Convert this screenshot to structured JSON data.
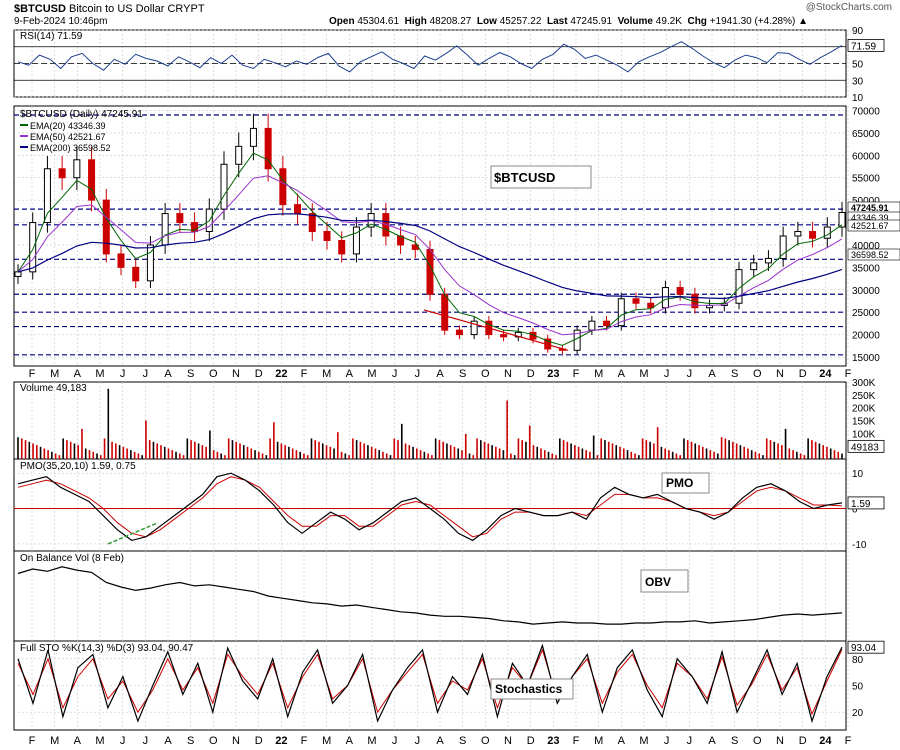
{
  "header": {
    "symbol": "$BTCUSD",
    "name": "Bitcoin to US Dollar",
    "exchange": "CRYPT",
    "datetime": "9-Feb-2024 10:46pm",
    "open_label": "Open",
    "open": "45304.61",
    "high_label": "High",
    "high": "48208.27",
    "low_label": "Low",
    "low": "45257.22",
    "last_label": "Last",
    "last": "47245.91",
    "volume_label": "Volume",
    "volume": "49.2K",
    "chg_label": "Chg",
    "chg": "+1941.30 (+4.28%)",
    "watermark": "@StockCharts.com"
  },
  "colors": {
    "price_up": "#000000",
    "price_down": "#cc0000",
    "ema20": "#006600",
    "ema50": "#9933cc",
    "ema200": "#000080",
    "rsi": "#1f3f8f",
    "rsi_fill": "#6f86c9",
    "volume": "#cc0000",
    "pmo": "#000000",
    "pmo_signal": "#cc0000",
    "sto_k": "#000000",
    "sto_d": "#cc0000",
    "grid": "#c8c8c8",
    "hline": "#000080",
    "trendline_red": "#cc0000",
    "trendline_green": "#339933"
  },
  "chart_data": [
    {
      "type": "line",
      "panel": "rsi",
      "title": "RSI(14) 71.59",
      "yticks": [
        10,
        30,
        50,
        70,
        90
      ],
      "ylim": [
        10,
        90
      ],
      "last_value": "71.59",
      "overbought": 70,
      "oversold": 30,
      "series": [
        {
          "name": "RSI(14)",
          "values": [
            52,
            48,
            60,
            55,
            44,
            58,
            62,
            50,
            42,
            55,
            49,
            61,
            56,
            53,
            47,
            58,
            52,
            45,
            57,
            50,
            60,
            48,
            44,
            55,
            51,
            46,
            53,
            49,
            57,
            62,
            47,
            40,
            52,
            58,
            64,
            55,
            50,
            44,
            59,
            54,
            62,
            71,
            60,
            48,
            56,
            63,
            58,
            50,
            44,
            55,
            61,
            73,
            67,
            56,
            60,
            54,
            48,
            40,
            52,
            58,
            63,
            70,
            76,
            68,
            59,
            51,
            45,
            54,
            60,
            57,
            51,
            63,
            62,
            55,
            49,
            57,
            64,
            71.59
          ]
        }
      ]
    },
    {
      "type": "candlestick",
      "panel": "price",
      "title": "$BTCUSD (Daily) 47245.91",
      "annotation": "$BTCUSD",
      "yticks": [
        15000,
        20000,
        25000,
        30000,
        35000,
        40000,
        45000,
        50000,
        55000,
        60000,
        65000,
        70000
      ],
      "ylim": [
        13000,
        71000
      ],
      "x_tick_labels": [
        "F",
        "M",
        "A",
        "M",
        "J",
        "J",
        "A",
        "S",
        "O",
        "N",
        "D",
        "22",
        "F",
        "M",
        "A",
        "M",
        "J",
        "J",
        "A",
        "S",
        "O",
        "N",
        "D",
        "23",
        "F",
        "M",
        "A",
        "M",
        "J",
        "J",
        "A",
        "S",
        "O",
        "N",
        "D",
        "24",
        "F"
      ],
      "horizontal_lines": [
        15500,
        21800,
        25000,
        29000,
        36800,
        44500,
        48000,
        69000
      ],
      "close": [
        34000,
        45000,
        57000,
        55000,
        59000,
        50000,
        38000,
        35000,
        32000,
        40000,
        47000,
        45000,
        43000,
        48000,
        58000,
        62000,
        66000,
        57000,
        49000,
        47000,
        43000,
        41000,
        38000,
        44000,
        47000,
        42000,
        40000,
        39000,
        29000,
        21000,
        20000,
        23000,
        20000,
        19500,
        20500,
        19000,
        16800,
        16500,
        21000,
        23000,
        22000,
        28000,
        27000,
        26000,
        30500,
        29000,
        26000,
        26500,
        27000,
        34500,
        36000,
        37000,
        42000,
        43000,
        41500,
        44000,
        47245.91
      ],
      "series": [
        {
          "name": "EMA(20) 43346.39",
          "value": 43346.39
        },
        {
          "name": "EMA(50) 42521.67",
          "value": 42521.67
        },
        {
          "name": "EMA(200) 36598.52",
          "value": 36598.52
        }
      ],
      "right_labels": [
        "47245.91",
        "43346.39",
        "42521.67",
        "36598.52"
      ]
    },
    {
      "type": "bar",
      "panel": "volume",
      "title": "Volume 49,183",
      "yticks_labels": [
        "50K",
        "100K",
        "150K",
        "200K",
        "250K",
        "300K"
      ],
      "yticks": [
        50000,
        100000,
        150000,
        200000,
        250000,
        300000
      ],
      "ylim": [
        0,
        300000
      ],
      "last_value": "49183"
    },
    {
      "type": "line",
      "panel": "pmo",
      "title": "PMO(35,20,10) 1.59, 0.75",
      "annotation": "PMO",
      "yticks": [
        -10,
        0,
        10
      ],
      "ytick_labels": [
        "-10",
        "0",
        "10"
      ],
      "ylim": [
        -12,
        14
      ],
      "last_value": "1.59",
      "series": [
        {
          "name": "PMO",
          "values": [
            7,
            8,
            9,
            6,
            4,
            2,
            -2,
            -6,
            -9,
            -8,
            -5,
            -2,
            1,
            4,
            9,
            10,
            8,
            5,
            1,
            -4,
            -7,
            -4,
            -1,
            -3,
            -6,
            -4,
            -1,
            2,
            3,
            0,
            -3,
            -7,
            -9,
            -6,
            -2,
            0,
            -1,
            -2,
            -2,
            -1,
            -3,
            3,
            6,
            4,
            3,
            4,
            2,
            0,
            -1,
            -3,
            -1,
            3,
            6,
            7,
            5,
            2,
            0,
            1,
            1.59
          ]
        },
        {
          "name": "Signal",
          "values": [
            6,
            7,
            8,
            7,
            5,
            3,
            0,
            -4,
            -7,
            -8,
            -6,
            -3,
            0,
            3,
            7,
            9,
            8,
            6,
            2,
            -2,
            -5,
            -5,
            -2,
            -2,
            -5,
            -5,
            -2,
            1,
            2,
            1,
            -2,
            -5,
            -8,
            -7,
            -3,
            -1,
            -1,
            -2,
            -2,
            -1,
            -2,
            1,
            4,
            4,
            3,
            3,
            2,
            0,
            -1,
            -2,
            -1,
            2,
            5,
            6,
            5,
            3,
            1,
            1,
            0.75
          ]
        }
      ]
    },
    {
      "type": "line",
      "panel": "obv",
      "title": "On Balance Vol (8 Feb)",
      "annotation": "OBV",
      "series": [
        {
          "name": "OBV",
          "values": [
            60,
            64,
            62,
            66,
            63,
            61,
            52,
            48,
            45,
            47,
            50,
            52,
            49,
            50,
            48,
            46,
            44,
            40,
            38,
            36,
            34,
            33,
            31,
            32,
            30,
            28,
            26,
            25,
            23,
            22,
            22,
            21,
            20,
            18,
            17,
            15,
            16,
            17,
            16,
            16,
            15,
            15,
            16,
            16,
            17,
            17,
            18,
            16,
            17,
            18,
            19,
            21,
            23,
            24,
            23,
            24,
            25
          ]
        }
      ]
    },
    {
      "type": "line",
      "panel": "stochastics",
      "title": "Full STO %K(14,3) %D(3) 93.04, 90.47",
      "annotation": "Stochastics",
      "yticks": [
        20,
        50,
        80
      ],
      "ylim": [
        0,
        100
      ],
      "last_value": "93.04",
      "series": [
        {
          "name": "%K",
          "values": [
            80,
            30,
            90,
            15,
            70,
            85,
            25,
            60,
            10,
            50,
            88,
            40,
            75,
            20,
            92,
            55,
            35,
            80,
            15,
            65,
            90,
            30,
            50,
            85,
            10,
            45,
            70,
            90,
            20,
            60,
            40,
            85,
            15,
            75,
            50,
            95,
            30,
            60,
            85,
            20,
            70,
            90,
            45,
            15,
            80,
            60,
            30,
            88,
            20,
            55,
            90,
            40,
            75,
            10,
            60,
            93.04
          ]
        },
        {
          "name": "%D",
          "values": [
            75,
            40,
            80,
            25,
            60,
            80,
            35,
            55,
            20,
            45,
            80,
            45,
            70,
            30,
            85,
            60,
            40,
            75,
            25,
            60,
            85,
            35,
            50,
            80,
            20,
            45,
            65,
            85,
            30,
            55,
            45,
            80,
            25,
            70,
            50,
            90,
            35,
            60,
            80,
            30,
            65,
            85,
            50,
            25,
            75,
            60,
            35,
            82,
            28,
            52,
            85,
            45,
            70,
            18,
            55,
            90.47
          ]
        }
      ],
      "x_tick_labels": [
        "F",
        "M",
        "A",
        "M",
        "J",
        "J",
        "A",
        "S",
        "O",
        "N",
        "D",
        "22",
        "F",
        "M",
        "A",
        "M",
        "J",
        "J",
        "A",
        "S",
        "O",
        "N",
        "D",
        "23",
        "F",
        "M",
        "A",
        "M",
        "J",
        "J",
        "A",
        "S",
        "O",
        "N",
        "D",
        "24",
        "F"
      ]
    }
  ]
}
